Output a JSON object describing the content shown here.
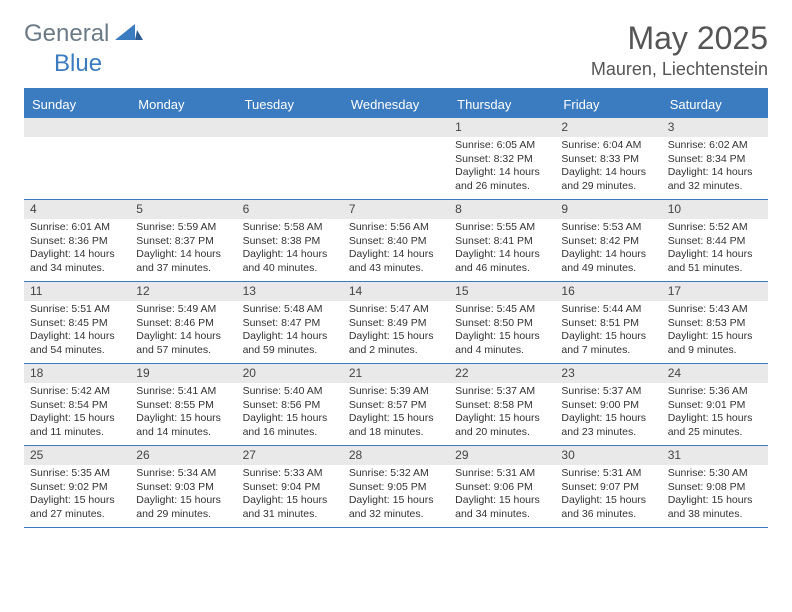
{
  "logo": {
    "general": "General",
    "blue": "Blue"
  },
  "title": {
    "month": "May 2025",
    "location": "Mauren, Liechtenstein"
  },
  "colors": {
    "brand_blue": "#3b7bbf",
    "header_text": "#ffffff",
    "band_bg": "#e9e9e9",
    "text": "#333333",
    "logo_gray": "#6b7a87"
  },
  "weekdays": [
    "Sunday",
    "Monday",
    "Tuesday",
    "Wednesday",
    "Thursday",
    "Friday",
    "Saturday"
  ],
  "grid": {
    "leading_blanks": 4,
    "rows": 5,
    "cols": 7
  },
  "days": [
    {
      "n": 1,
      "sunrise": "6:05 AM",
      "sunset": "8:32 PM",
      "daylight": "14 hours and 26 minutes."
    },
    {
      "n": 2,
      "sunrise": "6:04 AM",
      "sunset": "8:33 PM",
      "daylight": "14 hours and 29 minutes."
    },
    {
      "n": 3,
      "sunrise": "6:02 AM",
      "sunset": "8:34 PM",
      "daylight": "14 hours and 32 minutes."
    },
    {
      "n": 4,
      "sunrise": "6:01 AM",
      "sunset": "8:36 PM",
      "daylight": "14 hours and 34 minutes."
    },
    {
      "n": 5,
      "sunrise": "5:59 AM",
      "sunset": "8:37 PM",
      "daylight": "14 hours and 37 minutes."
    },
    {
      "n": 6,
      "sunrise": "5:58 AM",
      "sunset": "8:38 PM",
      "daylight": "14 hours and 40 minutes."
    },
    {
      "n": 7,
      "sunrise": "5:56 AM",
      "sunset": "8:40 PM",
      "daylight": "14 hours and 43 minutes."
    },
    {
      "n": 8,
      "sunrise": "5:55 AM",
      "sunset": "8:41 PM",
      "daylight": "14 hours and 46 minutes."
    },
    {
      "n": 9,
      "sunrise": "5:53 AM",
      "sunset": "8:42 PM",
      "daylight": "14 hours and 49 minutes."
    },
    {
      "n": 10,
      "sunrise": "5:52 AM",
      "sunset": "8:44 PM",
      "daylight": "14 hours and 51 minutes."
    },
    {
      "n": 11,
      "sunrise": "5:51 AM",
      "sunset": "8:45 PM",
      "daylight": "14 hours and 54 minutes."
    },
    {
      "n": 12,
      "sunrise": "5:49 AM",
      "sunset": "8:46 PM",
      "daylight": "14 hours and 57 minutes."
    },
    {
      "n": 13,
      "sunrise": "5:48 AM",
      "sunset": "8:47 PM",
      "daylight": "14 hours and 59 minutes."
    },
    {
      "n": 14,
      "sunrise": "5:47 AM",
      "sunset": "8:49 PM",
      "daylight": "15 hours and 2 minutes."
    },
    {
      "n": 15,
      "sunrise": "5:45 AM",
      "sunset": "8:50 PM",
      "daylight": "15 hours and 4 minutes."
    },
    {
      "n": 16,
      "sunrise": "5:44 AM",
      "sunset": "8:51 PM",
      "daylight": "15 hours and 7 minutes."
    },
    {
      "n": 17,
      "sunrise": "5:43 AM",
      "sunset": "8:53 PM",
      "daylight": "15 hours and 9 minutes."
    },
    {
      "n": 18,
      "sunrise": "5:42 AM",
      "sunset": "8:54 PM",
      "daylight": "15 hours and 11 minutes."
    },
    {
      "n": 19,
      "sunrise": "5:41 AM",
      "sunset": "8:55 PM",
      "daylight": "15 hours and 14 minutes."
    },
    {
      "n": 20,
      "sunrise": "5:40 AM",
      "sunset": "8:56 PM",
      "daylight": "15 hours and 16 minutes."
    },
    {
      "n": 21,
      "sunrise": "5:39 AM",
      "sunset": "8:57 PM",
      "daylight": "15 hours and 18 minutes."
    },
    {
      "n": 22,
      "sunrise": "5:37 AM",
      "sunset": "8:58 PM",
      "daylight": "15 hours and 20 minutes."
    },
    {
      "n": 23,
      "sunrise": "5:37 AM",
      "sunset": "9:00 PM",
      "daylight": "15 hours and 23 minutes."
    },
    {
      "n": 24,
      "sunrise": "5:36 AM",
      "sunset": "9:01 PM",
      "daylight": "15 hours and 25 minutes."
    },
    {
      "n": 25,
      "sunrise": "5:35 AM",
      "sunset": "9:02 PM",
      "daylight": "15 hours and 27 minutes."
    },
    {
      "n": 26,
      "sunrise": "5:34 AM",
      "sunset": "9:03 PM",
      "daylight": "15 hours and 29 minutes."
    },
    {
      "n": 27,
      "sunrise": "5:33 AM",
      "sunset": "9:04 PM",
      "daylight": "15 hours and 31 minutes."
    },
    {
      "n": 28,
      "sunrise": "5:32 AM",
      "sunset": "9:05 PM",
      "daylight": "15 hours and 32 minutes."
    },
    {
      "n": 29,
      "sunrise": "5:31 AM",
      "sunset": "9:06 PM",
      "daylight": "15 hours and 34 minutes."
    },
    {
      "n": 30,
      "sunrise": "5:31 AM",
      "sunset": "9:07 PM",
      "daylight": "15 hours and 36 minutes."
    },
    {
      "n": 31,
      "sunrise": "5:30 AM",
      "sunset": "9:08 PM",
      "daylight": "15 hours and 38 minutes."
    }
  ],
  "labels": {
    "sunrise_prefix": "Sunrise: ",
    "sunset_prefix": "Sunset: ",
    "daylight_prefix": "Daylight: "
  }
}
